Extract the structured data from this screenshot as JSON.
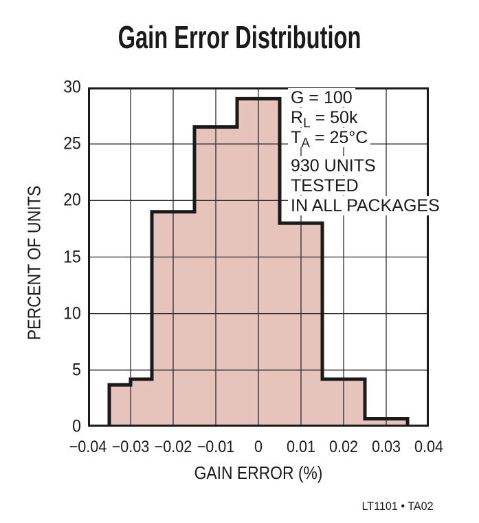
{
  "footer": "LT1101 • TA02",
  "annotation": {
    "conditions": [
      {
        "base": "G",
        "sub": "",
        "rest": " = 100"
      },
      {
        "base": "R",
        "sub": "L",
        "rest": " = 50k"
      },
      {
        "base": "T",
        "sub": "A",
        "rest": " = 25°C"
      }
    ],
    "notes": [
      "930 UNITS",
      "TESTED",
      "IN ALL PACKAGES"
    ]
  },
  "chart_data": {
    "type": "bar",
    "subtype": "histogram",
    "title": "Gain Error Distribution",
    "xlabel": "GAIN ERROR (%)",
    "ylabel": "PERCENT OF UNITS",
    "xlim": [
      -0.04,
      0.04
    ],
    "ylim": [
      0,
      30
    ],
    "grid": true,
    "bin_edges": [
      -0.035,
      -0.03,
      -0.025,
      -0.015,
      -0.005,
      0.005,
      0.015,
      0.025,
      0.035
    ],
    "values": [
      3.7,
      4.2,
      19,
      26.5,
      29,
      18,
      4.2,
      0.7
    ],
    "xticks": [
      {
        "label": "−0.04",
        "value": -0.04
      },
      {
        "label": "−0.03",
        "value": -0.03
      },
      {
        "label": "−0.02",
        "value": -0.02
      },
      {
        "label": "−0.01",
        "value": -0.01
      },
      {
        "label": "0",
        "value": 0
      },
      {
        "label": "0.01",
        "value": 0.01
      },
      {
        "label": "0.02",
        "value": 0.02
      },
      {
        "label": "0.03",
        "value": 0.03
      },
      {
        "label": "0.04",
        "value": 0.04
      }
    ],
    "yticks": [
      {
        "label": "30",
        "value": 30
      },
      {
        "label": "25",
        "value": 25
      },
      {
        "label": "20",
        "value": 20
      },
      {
        "label": "15",
        "value": 15
      },
      {
        "label": "10",
        "value": 10
      },
      {
        "label": "5",
        "value": 5
      },
      {
        "label": "0",
        "value": 0
      }
    ],
    "fill_color": "#e6c4bc",
    "outline_color": "#1a1a1a",
    "gridline_color": "#2b2b2b",
    "border_color": "#1a1a1a"
  }
}
